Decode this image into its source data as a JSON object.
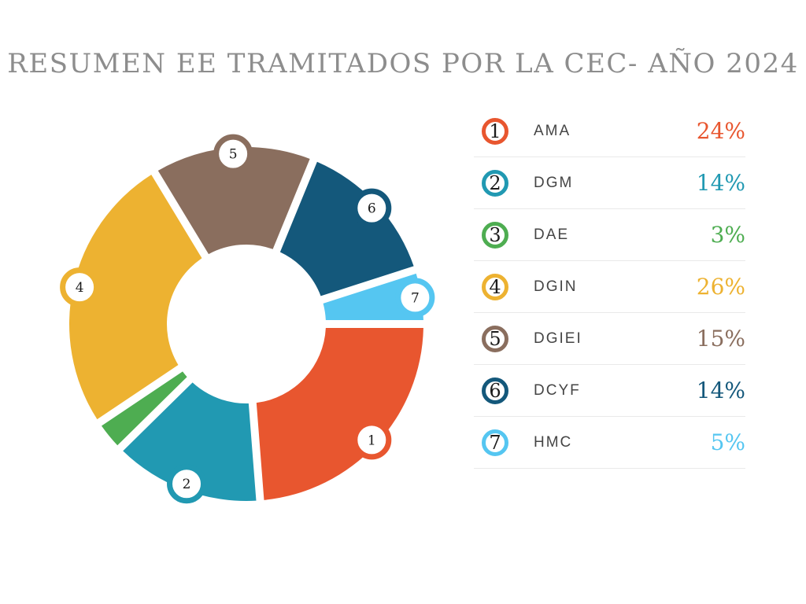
{
  "title": {
    "text": "RESUMEN EE TRAMITADOS POR LA CEC- AÑO 2024",
    "color": "#8d8d8d"
  },
  "legend": {
    "items": [
      {
        "number": "1",
        "label": "AMA",
        "value": "24%",
        "color": "#e8562f"
      },
      {
        "number": "2",
        "label": "DGM",
        "value": "14%",
        "color": "#2199b2"
      },
      {
        "number": "3",
        "label": "DAE",
        "value": "3%",
        "color": "#4ead51"
      },
      {
        "number": "4",
        "label": "DGIN",
        "value": "26%",
        "color": "#edb231"
      },
      {
        "number": "5",
        "label": "DGIEI",
        "value": "15%",
        "color": "#8a6e5e"
      },
      {
        "number": "6",
        "label": "DCYF",
        "value": "14%",
        "color": "#14587b"
      },
      {
        "number": "7",
        "label": "HMC",
        "value": "5%",
        "color": "#55c6f1"
      }
    ]
  },
  "chart_data": {
    "type": "pie",
    "variant": "donut",
    "title": "RESUMEN EE TRAMITADOS POR LA CEC- AÑO 2024",
    "categories": [
      "AMA",
      "DGM",
      "DAE",
      "DGIN",
      "DGIEI",
      "DCYF",
      "HMC"
    ],
    "values": [
      24,
      14,
      3,
      26,
      15,
      14,
      5
    ],
    "unit": "%",
    "segment_numbers": [
      "1",
      "2",
      "3",
      "4",
      "5",
      "6",
      "7"
    ],
    "colors": [
      "#e8562f",
      "#2199b2",
      "#4ead51",
      "#edb231",
      "#8a6e5e",
      "#14587b",
      "#55c6f1"
    ],
    "badge_visible": [
      true,
      true,
      false,
      true,
      true,
      true,
      true
    ],
    "start_angle_deg": 0,
    "direction": "clockwise",
    "legend_position": "right",
    "hole": true,
    "background": "#ffffff"
  }
}
